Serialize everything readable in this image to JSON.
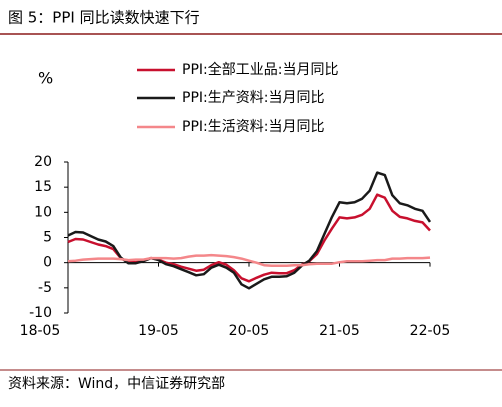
{
  "chart_data": {
    "type": "line",
    "title": "图 5：PPI 同比读数快速下行",
    "y_label": "%",
    "source": "资料来源：Wind，中信证券研究部",
    "categories": [
      "18-05",
      null,
      null,
      null,
      null,
      null,
      null,
      null,
      null,
      null,
      null,
      null,
      "19-05",
      null,
      null,
      null,
      null,
      null,
      null,
      null,
      null,
      null,
      null,
      null,
      "20-05",
      null,
      null,
      null,
      null,
      null,
      null,
      null,
      null,
      null,
      null,
      null,
      "21-05",
      null,
      null,
      null,
      null,
      null,
      null,
      null,
      null,
      null,
      null,
      null,
      "22-05"
    ],
    "series": [
      {
        "name": "PPI:全部工业品:当月同比",
        "color": "#c8102e",
        "values": [
          4.1,
          4.7,
          4.6,
          4.1,
          3.6,
          3.3,
          2.7,
          0.9,
          0.1,
          0.1,
          0.4,
          0.9,
          0.6,
          0.0,
          -0.3,
          -0.8,
          -1.2,
          -1.6,
          -1.4,
          -0.5,
          0.1,
          -0.4,
          -1.5,
          -3.1,
          -3.7,
          -3.0,
          -2.4,
          -2.0,
          -2.1,
          -2.1,
          -1.5,
          -0.4,
          0.3,
          1.7,
          4.4,
          6.8,
          9.0,
          8.8,
          9.0,
          9.5,
          10.7,
          13.5,
          12.9,
          10.3,
          9.1,
          8.8,
          8.3,
          8.0,
          6.4
        ]
      },
      {
        "name": "PPI:生产资料:当月同比",
        "color": "#1a1a1a",
        "values": [
          5.4,
          6.1,
          6.0,
          5.3,
          4.6,
          4.2,
          3.3,
          1.0,
          -0.1,
          -0.1,
          0.3,
          0.9,
          0.5,
          -0.3,
          -0.7,
          -1.3,
          -1.9,
          -2.5,
          -2.3,
          -1.0,
          -0.4,
          -1.0,
          -2.0,
          -4.3,
          -5.1,
          -4.2,
          -3.3,
          -2.8,
          -2.8,
          -2.7,
          -2.0,
          -0.6,
          0.4,
          2.3,
          5.7,
          9.1,
          12.0,
          11.8,
          12.0,
          12.7,
          14.3,
          17.9,
          17.4,
          13.4,
          11.8,
          11.4,
          10.7,
          10.3,
          8.1
        ]
      },
      {
        "name": "PPI:生活资料:当月同比",
        "color": "#f4878a",
        "values": [
          0.3,
          0.4,
          0.6,
          0.7,
          0.8,
          0.8,
          0.8,
          0.7,
          0.5,
          0.6,
          0.6,
          0.9,
          0.9,
          0.9,
          0.8,
          0.9,
          1.2,
          1.4,
          1.4,
          1.5,
          1.4,
          1.3,
          1.1,
          0.8,
          0.4,
          0.0,
          -0.5,
          -0.6,
          -0.6,
          -0.6,
          -0.5,
          -0.5,
          -0.3,
          -0.2,
          -0.2,
          -0.2,
          0.1,
          0.3,
          0.3,
          0.3,
          0.4,
          0.5,
          0.5,
          0.8,
          0.8,
          0.9,
          0.9,
          0.9,
          1.0
        ]
      }
    ],
    "ylim": [
      -10,
      20
    ],
    "yticks": [
      20,
      15,
      10,
      5,
      0,
      -5,
      -10
    ]
  }
}
